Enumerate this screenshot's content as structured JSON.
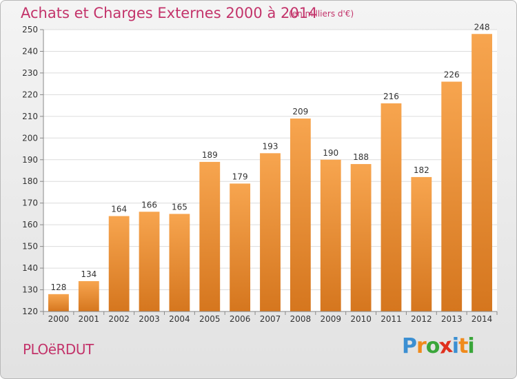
{
  "title": "Achats et Charges Externes 2000 à 2014",
  "subtitle": "(en milliers d'€)",
  "commune": "PLOëRDUT",
  "logo": {
    "text": "Proxiti",
    "letters": [
      "P",
      "r",
      "o",
      "x",
      "i",
      "t",
      "i"
    ],
    "colors": [
      "#3b8fd2",
      "#f08a1c",
      "#3aa63a",
      "#e0301e",
      "#3b8fd2",
      "#f08a1c",
      "#3aa63a"
    ]
  },
  "colors": {
    "bar_light": "#f7a54f",
    "bar_dark": "#d5761e",
    "accent": "#c3336a"
  },
  "chart_data": {
    "type": "bar",
    "categories": [
      "2000",
      "2001",
      "2002",
      "2003",
      "2004",
      "2005",
      "2006",
      "2007",
      "2008",
      "2009",
      "2010",
      "2011",
      "2012",
      "2013",
      "2014"
    ],
    "values": [
      128,
      134,
      164,
      166,
      165,
      189,
      179,
      193,
      209,
      190,
      188,
      216,
      182,
      226,
      248
    ],
    "ylim": [
      120,
      250
    ],
    "yticks": [
      120,
      130,
      140,
      150,
      160,
      170,
      180,
      190,
      200,
      210,
      220,
      230,
      240,
      250
    ],
    "grid": true,
    "data_labels": true
  }
}
